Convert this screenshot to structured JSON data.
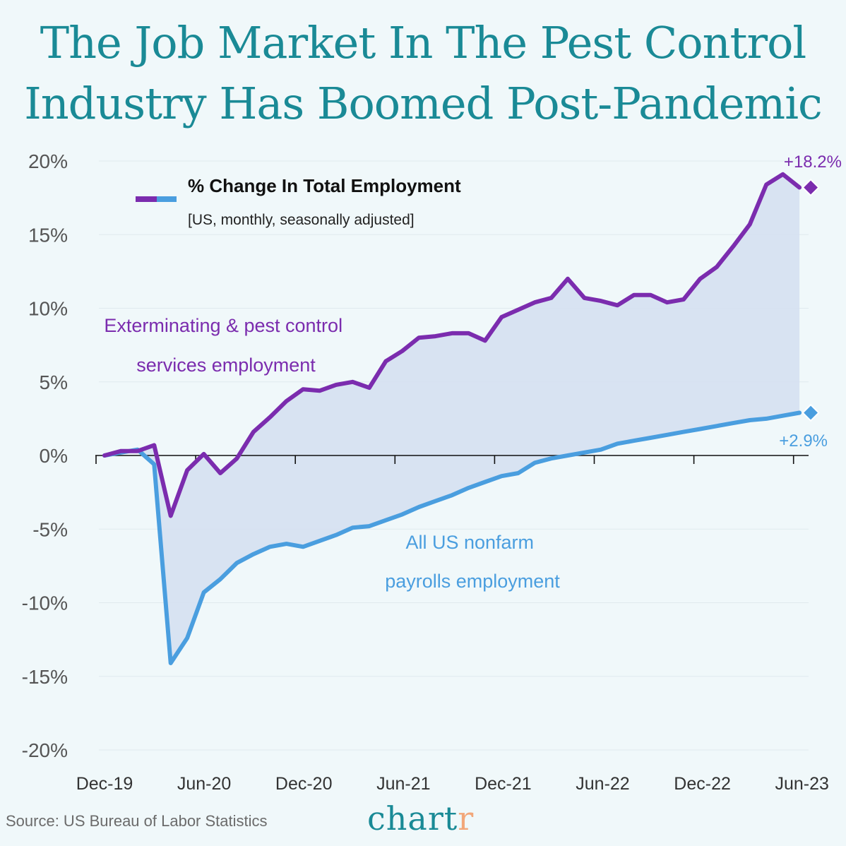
{
  "title_line1": "The Job Market In The Pest Control",
  "title_line2": "Industry Has Boomed Post-Pandemic",
  "legend": {
    "title": "% Change In Total Employment",
    "subtitle": "[US, monthly, seasonally adjusted]"
  },
  "source": "Source: US Bureau of Labor Statistics",
  "logo": {
    "main": "chart",
    "accent": "r"
  },
  "colors": {
    "pest": "#7b2cae",
    "nonfarm": "#4a9edf",
    "fill": "#d4dff0",
    "axis_text": "#555555"
  },
  "chart_data": {
    "type": "line",
    "ylim": [
      -20,
      20
    ],
    "yticks": [
      20,
      15,
      10,
      5,
      0,
      -5,
      -10,
      -15,
      -20
    ],
    "ytick_labels": [
      "20%",
      "15%",
      "10%",
      "5%",
      "0%",
      "-5%",
      "-10%",
      "-15%",
      "-20%"
    ],
    "xtick_labels": [
      "Dec-19",
      "Jun-20",
      "Dec-20",
      "Jun-21",
      "Dec-21",
      "Jun-22",
      "Dec-22",
      "Jun-23"
    ],
    "x": [
      "Dec-19",
      "Jan-20",
      "Feb-20",
      "Mar-20",
      "Apr-20",
      "May-20",
      "Jun-20",
      "Jul-20",
      "Aug-20",
      "Sep-20",
      "Oct-20",
      "Nov-20",
      "Dec-20",
      "Jan-21",
      "Feb-21",
      "Mar-21",
      "Apr-21",
      "May-21",
      "Jun-21",
      "Jul-21",
      "Aug-21",
      "Sep-21",
      "Oct-21",
      "Nov-21",
      "Dec-21",
      "Jan-22",
      "Feb-22",
      "Mar-22",
      "Apr-22",
      "May-22",
      "Jun-22",
      "Jul-22",
      "Aug-22",
      "Sep-22",
      "Oct-22",
      "Nov-22",
      "Dec-22",
      "Jan-23",
      "Feb-23",
      "Mar-23",
      "Apr-23",
      "May-23",
      "Jun-23"
    ],
    "series": [
      {
        "name": "Exterminating & pest control services employment",
        "label_lines": [
          "Exterminating & pest control",
          "services employment"
        ],
        "end_label": "+18.2%",
        "values": [
          0.0,
          0.3,
          0.3,
          0.7,
          -4.1,
          -1.0,
          0.1,
          -1.2,
          -0.2,
          1.6,
          2.6,
          3.7,
          4.5,
          4.4,
          4.8,
          5.0,
          4.6,
          6.4,
          7.1,
          8.0,
          8.1,
          8.3,
          8.3,
          7.8,
          9.4,
          9.9,
          10.4,
          10.7,
          12.0,
          10.7,
          10.5,
          10.2,
          10.9,
          10.9,
          10.4,
          10.6,
          12.0,
          12.8,
          14.2,
          15.7,
          18.4,
          19.1,
          18.2
        ]
      },
      {
        "name": "All US nonfarm payrolls employment",
        "label_lines": [
          "All US nonfarm",
          "payrolls employment"
        ],
        "end_label": "+2.9%",
        "values": [
          0.0,
          0.2,
          0.4,
          -0.6,
          -14.1,
          -12.4,
          -9.3,
          -8.4,
          -7.3,
          -6.7,
          -6.2,
          -6.0,
          -6.2,
          -5.8,
          -5.4,
          -4.9,
          -4.8,
          -4.4,
          -4.0,
          -3.5,
          -3.1,
          -2.7,
          -2.2,
          -1.8,
          -1.4,
          -1.2,
          -0.5,
          -0.2,
          0.0,
          0.2,
          0.4,
          0.8,
          1.0,
          1.2,
          1.4,
          1.6,
          1.8,
          2.0,
          2.2,
          2.4,
          2.5,
          2.7,
          2.9
        ]
      }
    ]
  }
}
